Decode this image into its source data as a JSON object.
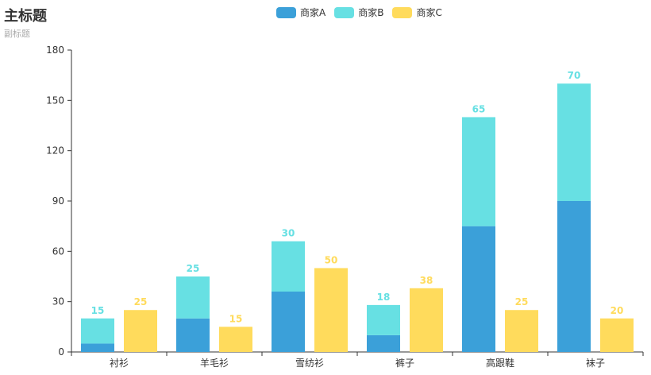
{
  "chart_data": {
    "type": "bar",
    "title": "主标题",
    "subtitle": "副标题",
    "categories": [
      "衬衫",
      "羊毛衫",
      "雪纺衫",
      "裤子",
      "高跟鞋",
      "袜子"
    ],
    "ylim": [
      0,
      180
    ],
    "yticks": [
      0,
      30,
      60,
      90,
      120,
      150,
      180
    ],
    "stacked": true,
    "legend_position": "top-center",
    "grid": false,
    "series": [
      {
        "name": "商家A",
        "stack": "stack1",
        "color": "#3ba0d9",
        "show_labels": false,
        "values": [
          5,
          20,
          36,
          10,
          75,
          90
        ]
      },
      {
        "name": "商家B",
        "stack": "stack1",
        "color": "#67e0e3",
        "show_labels": true,
        "values": [
          15,
          25,
          30,
          18,
          65,
          70
        ]
      },
      {
        "name": "商家C",
        "stack": "stack2",
        "color": "#ffdb5c",
        "show_labels": true,
        "values": [
          25,
          15,
          50,
          38,
          25,
          20
        ]
      }
    ]
  }
}
